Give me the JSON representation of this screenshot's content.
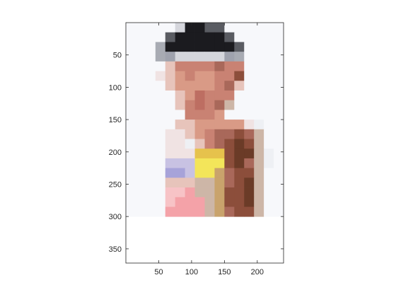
{
  "chart_data": {
    "type": "heatmap",
    "title": "",
    "xlabel": "",
    "ylabel": "",
    "xlim": [
      0,
      240
    ],
    "ylim": [
      372,
      0
    ],
    "x_ticks": [
      50,
      100,
      150,
      200
    ],
    "y_ticks": [
      50,
      100,
      150,
      200,
      250,
      300,
      350
    ],
    "x_tick_labels": [
      "50",
      "100",
      "150",
      "200"
    ],
    "y_tick_labels": [
      "50",
      "100",
      "150",
      "200",
      "250",
      "300",
      "350"
    ],
    "grid": false,
    "legend": "none",
    "cell_size": 15,
    "row_palette_note": "",
    "palette": {
      "w": "#f7f8fb",
      "W": "#eef0f4",
      "g": "#d5d6dc",
      "G": "#a8abb3",
      "d": "#5a5c62",
      "k": "#1b1b1f",
      "b": "#9fa2ad",
      "s": "#f0e3e3",
      "l": "#e7c4bb",
      "p": "#d99a86",
      "r": "#c98273",
      "m": "#bd6e62",
      "n": "#a9685a",
      "o": "#8c4e3b",
      "c": "#6b3b27",
      "y": "#f3e55a",
      "Y": "#e6c24c",
      "t": "#c9a36c",
      "v": "#a7a3d9",
      "V": "#c8c2e3",
      "q": "#f4a2a8",
      "Q": "#f7c3c6",
      "e": "#e7d5c3",
      "h": "#cdb6a7"
    },
    "rows": [
      "wwwwwgkkddwwwwww",
      "wwwwdkkkkkdwwwww",
      "wwwGkkkkkkkdwwww",
      "wwwGbgggggbGwwww",
      "wwwwlrrrrnrrwwww",
      "wwwslprpprrowwww",
      "wwwwlpppprnlwwww",
      "wwwwwlpmrrrwwwww",
      "wwwwwlrmrnhwwwww",
      "wwwwwwrrrpwwwwww",
      "wwwwwllpppppsWww",
      "wwwwsslprnnonhww",
      "wwwwssWlrnocohww",
      "wwwwsssYYYocchWw",
      "wwwwVVVyyyocnhWw",
      "wwwwvvVyytnoohww",
      "wwwwlllhhtnochww",
      "wwwwQQqhhtoochww",
      "wwwwQqqqhtoochww",
      "wwwwqqqqhtnoohww"
    ]
  }
}
